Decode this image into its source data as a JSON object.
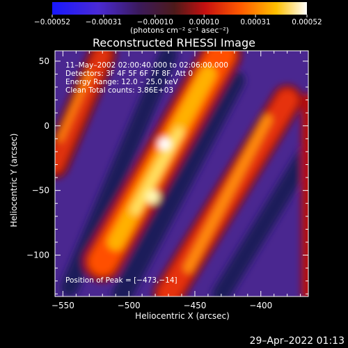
{
  "chart_data": {
    "type": "heatmap",
    "title": "Reconstructed RHESSI Image",
    "xlabel": "Heliocentric X (arcsec)",
    "ylabel": "Heliocentric Y (arcsec)",
    "xlim": [
      -556,
      -364
    ],
    "ylim": [
      -132,
      58
    ],
    "x_ticks": [
      -550,
      -500,
      -450,
      -400
    ],
    "y_ticks": [
      -100,
      -50,
      0,
      50
    ],
    "x_tick_labels": [
      "−550",
      "−500",
      "−450",
      "−400"
    ],
    "y_tick_labels": [
      "−100",
      "−50",
      "0",
      "50"
    ],
    "colorbar": {
      "min": -0.00052,
      "max": 0.00052,
      "ticks": [
        -0.00052,
        -0.00031,
        -0.0001,
        0.0001,
        0.00031,
        0.00052
      ],
      "tick_labels": [
        "−0.00052",
        "−0.00031",
        "−0.00010",
        "0.00010",
        "0.00031",
        "0.00052"
      ],
      "units": "(photons cm⁻² s⁻¹ asec⁻²)",
      "colormap": "blue-purple-red-orange-yellow-white"
    },
    "info_lines": [
      "11–May–2002 02:00:40.000 to 02:06:00.000",
      "Detectors: 3F 4F 5F 6F 7F 8F, Att 0",
      "Energy Range: 12.0 – 25.0 keV",
      "Clean     Total counts: 3.86E+03"
    ],
    "peak_label": "Position of Peak = [−473,−14]",
    "peak": {
      "x": -473,
      "y": -14
    },
    "image_features": {
      "description_of_structure": "diagonal bright ridges running from lower-left to upper-right",
      "ridges": [
        {
          "name": "central",
          "through": [
            -520,
            -105
          ],
          "to": [
            -430,
            55
          ],
          "peak_value": 0.00052
        },
        {
          "name": "left",
          "through": [
            -556,
            -30
          ],
          "to": [
            -520,
            55
          ],
          "peak_value": 0.00028
        },
        {
          "name": "right",
          "through": [
            -470,
            -130
          ],
          "to": [
            -380,
            20
          ],
          "peak_value": 0.00034
        }
      ]
    }
  },
  "footer": {
    "timestamp": "29–Apr–2022 01:13"
  },
  "colors": {
    "background": "#000000",
    "text": "#ffffff",
    "negative": "#1818ff",
    "mid": "#4a2790",
    "positive_low": "#d01010",
    "positive_high": "#ff9900",
    "peak": "#ffffff"
  }
}
